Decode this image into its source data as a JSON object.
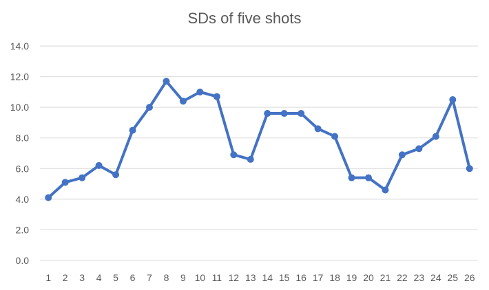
{
  "chart_data": {
    "type": "line",
    "title": "SDs of five shots",
    "xlabel": "",
    "ylabel": "",
    "categories": [
      "1",
      "2",
      "3",
      "4",
      "5",
      "6",
      "7",
      "8",
      "9",
      "10",
      "11",
      "12",
      "13",
      "14",
      "15",
      "16",
      "17",
      "18",
      "19",
      "20",
      "21",
      "22",
      "23",
      "24",
      "25",
      "26"
    ],
    "y_tick_labels": [
      "0.0",
      "2.0",
      "4.0",
      "6.0",
      "8.0",
      "10.0",
      "12.0",
      "14.0"
    ],
    "ylim": [
      0,
      14
    ],
    "grid": true,
    "legend": "none",
    "series": [
      {
        "color": "#4472c4",
        "values": [
          4.1,
          5.1,
          5.4,
          6.2,
          5.6,
          8.5,
          10.0,
          11.7,
          10.4,
          11.0,
          10.7,
          6.9,
          6.6,
          9.6,
          9.6,
          9.6,
          8.6,
          8.1,
          5.4,
          5.4,
          4.6,
          6.9,
          7.3,
          8.1,
          10.5,
          6.0
        ]
      }
    ]
  }
}
